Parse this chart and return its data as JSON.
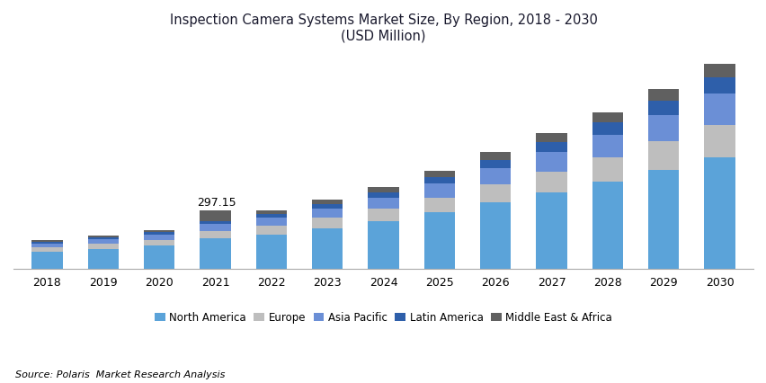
{
  "years": [
    2018,
    2019,
    2020,
    2021,
    2022,
    2023,
    2024,
    2025,
    2026,
    2027,
    2028,
    2029,
    2030
  ],
  "north_america": [
    88,
    102,
    118,
    155,
    175,
    205,
    240,
    285,
    335,
    385,
    440,
    500,
    560
  ],
  "europe": [
    22,
    26,
    30,
    38,
    44,
    52,
    62,
    75,
    90,
    105,
    122,
    142,
    165
  ],
  "asia_pacific": [
    18,
    21,
    25,
    32,
    38,
    46,
    56,
    68,
    82,
    97,
    114,
    133,
    155
  ],
  "latin_america": [
    9,
    11,
    13,
    17,
    20,
    24,
    29,
    35,
    42,
    50,
    59,
    70,
    82
  ],
  "middle_east": [
    8,
    9,
    11,
    55,
    18,
    21,
    26,
    31,
    37,
    44,
    52,
    60,
    70
  ],
  "colors": {
    "north_america": "#5BA3D9",
    "europe": "#BEBEBE",
    "asia_pacific": "#6B8FD6",
    "latin_america": "#2E5FAA",
    "middle_east": "#606060"
  },
  "title_line1": "Inspection Camera Systems Market Size, By Region, 2018 - 2030",
  "title_line2": "(USD Million)",
  "annotation_year": 2021,
  "annotation_text": "297.15",
  "legend_labels": [
    "North America",
    "Europe",
    "Asia Pacific",
    "Latin America",
    "Middle East & Africa"
  ],
  "source_text": "Source: Polaris  Market Research Analysis",
  "background_color": "#FFFFFF",
  "ylim_max": 1100
}
